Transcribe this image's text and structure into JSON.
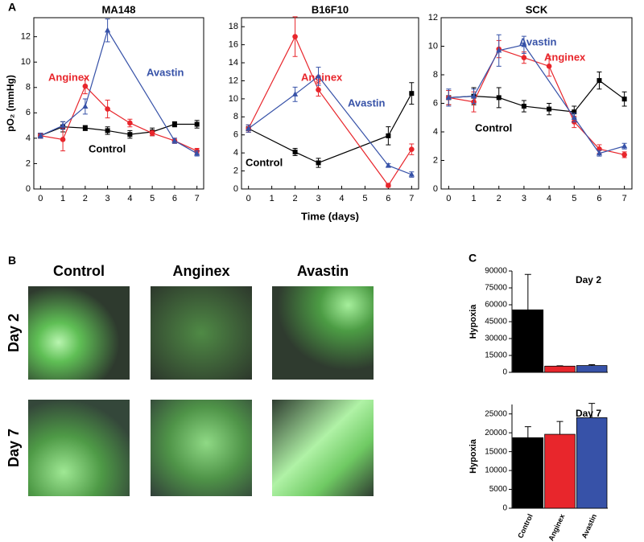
{
  "panel_labels": [
    "A",
    "B",
    "C"
  ],
  "chart_data": [
    {
      "type": "line",
      "title": "MA148",
      "ylabel": "pO₂ (mmHg)",
      "xlim": [
        -0.3,
        7.3
      ],
      "xticks": [
        0,
        1,
        2,
        3,
        4,
        5,
        6,
        7
      ],
      "ylim": [
        0,
        13.5
      ],
      "yticks": [
        0,
        2,
        4,
        6,
        8,
        10,
        12
      ],
      "series": [
        {
          "name": "Control",
          "color": "#000000",
          "marker": "square",
          "x": [
            0,
            1,
            2,
            3,
            4,
            5,
            6,
            7
          ],
          "values": [
            4.2,
            4.9,
            4.8,
            4.6,
            4.3,
            4.5,
            5.1,
            5.1
          ],
          "errors": [
            0.2,
            0.4,
            0.2,
            0.3,
            0.3,
            0.3,
            0.2,
            0.3
          ]
        },
        {
          "name": "Anginex",
          "color": "#e8262c",
          "marker": "circle",
          "x": [
            0,
            1,
            2,
            3,
            4,
            5,
            6,
            7
          ],
          "values": [
            4.2,
            3.9,
            8.1,
            6.3,
            5.2,
            4.4,
            3.8,
            3.0
          ],
          "errors": [
            0.2,
            0.9,
            0.6,
            0.7,
            0.3,
            0.2,
            0.2,
            0.2
          ]
        },
        {
          "name": "Avastin",
          "color": "#3752a8",
          "marker": "triangle",
          "x": [
            0,
            1,
            2,
            3,
            6,
            7
          ],
          "values": [
            4.2,
            5.0,
            6.5,
            12.5,
            3.8,
            2.8
          ],
          "errors": [
            0.2,
            0.3,
            0.6,
            0.9,
            0.2,
            0.2
          ]
        }
      ]
    },
    {
      "type": "line",
      "title": "B16F10",
      "xlabel": "Time (days)",
      "xlim": [
        -0.3,
        7.3
      ],
      "xticks": [
        0,
        1,
        2,
        3,
        4,
        5,
        6,
        7
      ],
      "ylim": [
        0,
        19
      ],
      "yticks": [
        0,
        2,
        4,
        6,
        8,
        10,
        12,
        14,
        16,
        18
      ],
      "series": [
        {
          "name": "Control",
          "color": "#000000",
          "marker": "square",
          "x": [
            0,
            2,
            3,
            6,
            7
          ],
          "values": [
            6.7,
            4.1,
            2.9,
            5.9,
            10.6
          ],
          "errors": [
            0.4,
            0.4,
            0.5,
            1.0,
            1.2
          ]
        },
        {
          "name": "Anginex",
          "color": "#e8262c",
          "marker": "circle",
          "x": [
            0,
            2,
            3,
            6,
            7
          ],
          "values": [
            6.7,
            16.9,
            11.0,
            0.4,
            4.4
          ],
          "errors": [
            0.4,
            2.2,
            0.7,
            0.2,
            0.6
          ]
        },
        {
          "name": "Avastin",
          "color": "#3752a8",
          "marker": "triangle",
          "x": [
            0,
            2,
            3,
            6,
            7
          ],
          "values": [
            6.7,
            10.5,
            12.5,
            2.6,
            1.6
          ],
          "errors": [
            0.4,
            0.8,
            1.0,
            0.2,
            0.3
          ]
        }
      ]
    },
    {
      "type": "line",
      "title": "SCK",
      "xlim": [
        -0.3,
        7.3
      ],
      "xticks": [
        0,
        1,
        2,
        3,
        4,
        5,
        6,
        7
      ],
      "ylim": [
        0,
        12
      ],
      "yticks": [
        0,
        2,
        4,
        6,
        8,
        10,
        12
      ],
      "series": [
        {
          "name": "Control",
          "color": "#000000",
          "marker": "square",
          "x": [
            0,
            1,
            2,
            3,
            4,
            5,
            6,
            7
          ],
          "values": [
            6.4,
            6.5,
            6.4,
            5.8,
            5.6,
            5.4,
            7.6,
            6.3
          ],
          "errors": [
            0.5,
            0.6,
            0.7,
            0.4,
            0.4,
            0.4,
            0.6,
            0.5
          ]
        },
        {
          "name": "Anginex",
          "color": "#e8262c",
          "marker": "circle",
          "x": [
            0,
            1,
            2,
            3,
            4,
            5,
            6,
            7
          ],
          "values": [
            6.4,
            6.1,
            9.8,
            9.2,
            8.6,
            4.7,
            2.8,
            2.4
          ],
          "errors": [
            0.5,
            0.7,
            0.6,
            0.4,
            0.7,
            0.4,
            0.3,
            0.2
          ]
        },
        {
          "name": "Avastin",
          "color": "#3752a8",
          "marker": "triangle",
          "x": [
            0,
            1,
            2,
            3,
            5,
            6,
            7
          ],
          "values": [
            6.4,
            6.5,
            9.7,
            10.1,
            5.0,
            2.5,
            3.0
          ],
          "errors": [
            0.6,
            0.5,
            1.1,
            0.6,
            0.3,
            0.2,
            0.2
          ]
        }
      ]
    },
    {
      "type": "bar",
      "title": "Day 2",
      "ylabel": "Hypoxia",
      "categories": [
        null,
        null,
        null
      ],
      "colors": [
        "#000000",
        "#e8262c",
        "#3752a8"
      ],
      "values": [
        55500,
        5500,
        6000
      ],
      "errors": [
        31500,
        300,
        800
      ],
      "ylim": [
        0,
        90000
      ],
      "yticks": [
        0,
        15000,
        30000,
        45000,
        60000,
        75000,
        90000
      ]
    },
    {
      "type": "bar",
      "title": "Day 7",
      "ylabel": "Hypoxia",
      "categories": [
        "Control",
        "Anginex",
        "Avastin"
      ],
      "colors": [
        "#000000",
        "#e8262c",
        "#3752a8"
      ],
      "values": [
        18700,
        19600,
        24000
      ],
      "errors": [
        2900,
        3400,
        3800
      ],
      "ylim": [
        0,
        27500
      ],
      "yticks": [
        0,
        5000,
        10000,
        15000,
        20000,
        25000
      ]
    }
  ],
  "micrographs": {
    "columns": [
      "Control",
      "Anginex",
      "Avastin"
    ],
    "rows": [
      "Day 2",
      "Day 7"
    ]
  }
}
